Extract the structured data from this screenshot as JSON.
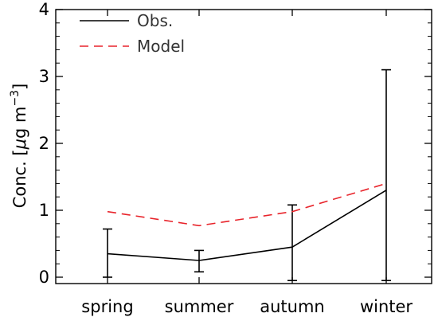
{
  "chart_data": {
    "type": "line",
    "title": "",
    "xlabel": "",
    "ylabel": {
      "prefix": "Conc. [",
      "mu": "μ",
      "unit": "g m",
      "exponent": "−3",
      "suffix": "]"
    },
    "categories": [
      "spring",
      "summer",
      "autumn",
      "winter"
    ],
    "ylim": [
      0,
      4
    ],
    "yticks": [
      0,
      1,
      2,
      3,
      4
    ],
    "legend_position": "top-left",
    "series": [
      {
        "name": "Obs.",
        "color": "#000000",
        "style": "solid",
        "values": [
          0.35,
          0.25,
          0.45,
          1.3
        ],
        "error_low": [
          0.0,
          0.08,
          -0.05,
          -0.05
        ],
        "error_high": [
          0.72,
          0.4,
          1.08,
          3.1
        ]
      },
      {
        "name": "Model",
        "color": "#e8242b",
        "style": "dashed",
        "values": [
          0.98,
          0.77,
          0.98,
          1.4
        ]
      }
    ]
  }
}
